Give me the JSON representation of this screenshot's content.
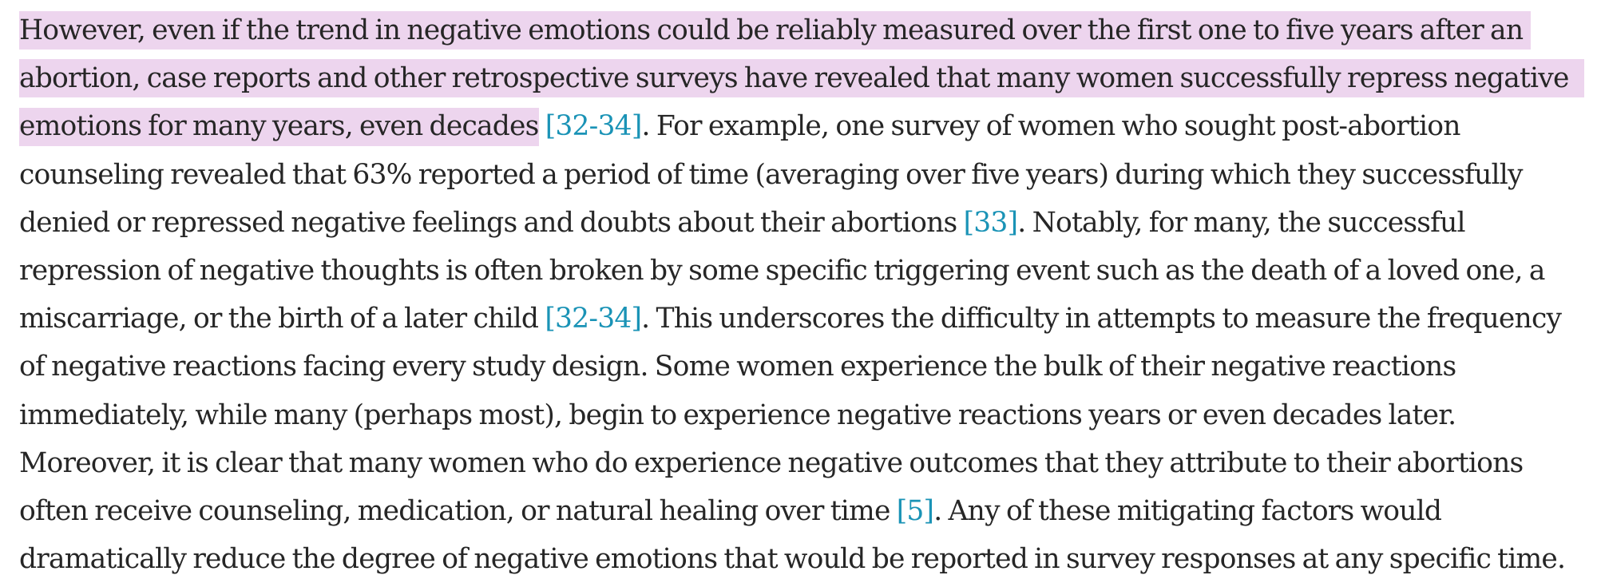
{
  "paragraph": {
    "lines": [
      {
        "parts": [
          {
            "text": "However, even if the trend in negative emotions could be reliably measured over the first one to five years after an",
            "highlight": true
          }
        ]
      },
      {
        "parts": [
          {
            "text": "abortion, case reports and other retrospective surveys have revealed that many women successfully repress negative",
            "highlight": true
          }
        ]
      },
      {
        "parts": [
          {
            "text": "emotions for many years, even decades",
            "highlight": true
          },
          {
            "text": " "
          },
          {
            "text": "[32-34]",
            "citation": true
          },
          {
            "text": ". For example, one survey of women who sought post-abortion"
          }
        ]
      },
      {
        "parts": [
          {
            "text": "counseling revealed that 63% reported a period of time (averaging over five years) during which they successfully"
          }
        ]
      },
      {
        "parts": [
          {
            "text": "denied or repressed negative feelings and doubts about their abortions "
          },
          {
            "text": "[33]",
            "citation": true
          },
          {
            "text": ". Notably, for many, the successful"
          }
        ]
      },
      {
        "parts": [
          {
            "text": "repression of negative thoughts is often broken by some specific triggering event such as the death of a loved one, a"
          }
        ]
      },
      {
        "parts": [
          {
            "text": "miscarriage, or the birth of a later child "
          },
          {
            "text": "[32-34]",
            "citation": true
          },
          {
            "text": ". This underscores the difficulty in attempts to measure the frequency"
          }
        ]
      },
      {
        "parts": [
          {
            "text": "of negative reactions facing every study design. Some women experience the bulk of their negative reactions"
          }
        ]
      },
      {
        "parts": [
          {
            "text": "immediately, while many (perhaps most), begin to experience negative reactions years or even decades later."
          }
        ]
      },
      {
        "parts": [
          {
            "text": "Moreover, it is clear that many women who do experience negative outcomes that they attribute to their abortions"
          }
        ]
      },
      {
        "parts": [
          {
            "text": "often receive counseling, medication, or natural healing over time "
          },
          {
            "text": "[5]",
            "citation": true
          },
          {
            "text": ". Any of these mitigating factors would"
          }
        ]
      },
      {
        "parts": [
          {
            "text": "dramatically reduce the degree of negative emotions that would be reported in survey responses at any specific time."
          }
        ]
      }
    ]
  },
  "colors": {
    "text": "#262626",
    "citation": "#1a93b6",
    "highlight": "#edd5ee",
    "background": "#ffffff"
  }
}
